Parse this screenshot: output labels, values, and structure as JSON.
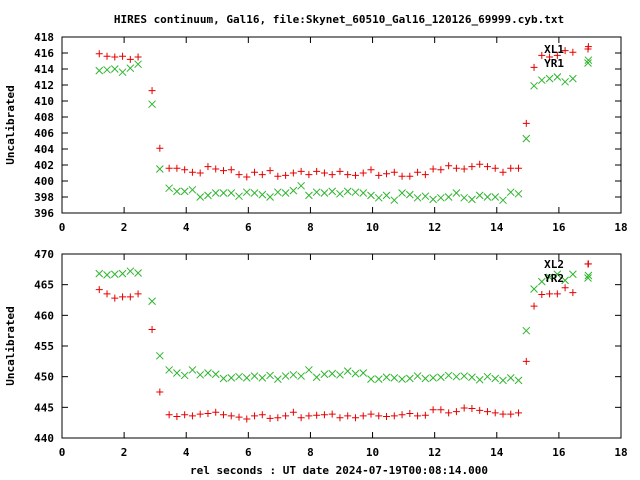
{
  "title": "HIRES continuum, Gal16, file:Skynet_60510_Gal16_120126_69999.cyb.txt",
  "xlabel": "rel seconds : UT date 2024-07-19T00:08:14.000",
  "colors": {
    "red": "#e60000",
    "green": "#2db52d",
    "frame": "#000000"
  },
  "chart_data": [
    {
      "type": "scatter",
      "ylabel": "Uncalibrated",
      "xlim": [
        0,
        18
      ],
      "ylim": [
        396,
        418
      ],
      "xticks": [
        0,
        2,
        4,
        6,
        8,
        10,
        12,
        14,
        16,
        18
      ],
      "yticks": [
        396,
        398,
        400,
        402,
        404,
        406,
        408,
        410,
        412,
        414,
        416,
        418
      ],
      "series": [
        {
          "name": "XL1",
          "color": "#e60000",
          "marker": "plus",
          "x": [
            1.2,
            1.45,
            1.7,
            1.95,
            2.2,
            2.45,
            2.9,
            3.15,
            3.45,
            3.7,
            3.95,
            4.2,
            4.45,
            4.7,
            4.95,
            5.2,
            5.45,
            5.7,
            5.95,
            6.2,
            6.45,
            6.7,
            6.95,
            7.2,
            7.45,
            7.7,
            7.95,
            8.2,
            8.45,
            8.7,
            8.95,
            9.2,
            9.45,
            9.7,
            9.95,
            10.2,
            10.45,
            10.7,
            10.95,
            11.2,
            11.45,
            11.7,
            11.95,
            12.2,
            12.45,
            12.7,
            12.95,
            13.2,
            13.45,
            13.7,
            13.95,
            14.2,
            14.45,
            14.7,
            14.95,
            15.2,
            15.45,
            15.7,
            15.95,
            16.2,
            16.45,
            16.95
          ],
          "y": [
            415.9,
            415.6,
            415.5,
            415.6,
            415.2,
            415.5,
            411.3,
            404.1,
            401.6,
            401.6,
            401.4,
            401.1,
            401.0,
            401.8,
            401.5,
            401.3,
            401.4,
            400.8,
            400.5,
            401.1,
            400.8,
            401.3,
            400.6,
            400.7,
            401.0,
            401.2,
            400.8,
            401.2,
            401.0,
            400.8,
            401.2,
            400.8,
            400.7,
            401.0,
            401.4,
            400.7,
            400.9,
            401.1,
            400.6,
            400.6,
            401.1,
            400.8,
            401.5,
            401.4,
            401.9,
            401.6,
            401.5,
            401.8,
            402.1,
            401.8,
            401.6,
            401.1,
            401.6,
            401.6,
            407.2,
            414.2,
            415.7,
            415.5,
            415.7,
            416.3,
            416.1,
            416.8
          ]
        },
        {
          "name": "YR1",
          "color": "#2db52d",
          "marker": "cross",
          "x": [
            1.2,
            1.45,
            1.7,
            1.95,
            2.2,
            2.45,
            2.9,
            3.15,
            3.45,
            3.7,
            3.95,
            4.2,
            4.45,
            4.7,
            4.95,
            5.2,
            5.45,
            5.7,
            5.95,
            6.2,
            6.45,
            6.7,
            6.95,
            7.2,
            7.45,
            7.7,
            7.95,
            8.2,
            8.45,
            8.7,
            8.95,
            9.2,
            9.45,
            9.7,
            9.95,
            10.2,
            10.45,
            10.7,
            10.95,
            11.2,
            11.45,
            11.7,
            11.95,
            12.2,
            12.45,
            12.7,
            12.95,
            13.2,
            13.45,
            13.7,
            13.95,
            14.2,
            14.45,
            14.7,
            14.95,
            15.2,
            15.45,
            15.7,
            15.95,
            16.2,
            16.45,
            16.95
          ],
          "y": [
            413.8,
            413.9,
            414.0,
            413.6,
            414.1,
            414.6,
            409.6,
            401.5,
            399.1,
            398.7,
            398.7,
            398.9,
            398.0,
            398.2,
            398.5,
            398.5,
            398.5,
            398.1,
            398.6,
            398.5,
            398.3,
            398.0,
            398.6,
            398.5,
            398.8,
            399.4,
            398.2,
            398.6,
            398.5,
            398.7,
            398.4,
            398.7,
            398.6,
            398.5,
            398.2,
            397.9,
            398.2,
            397.6,
            398.5,
            398.3,
            397.9,
            398.1,
            397.7,
            397.9,
            398.0,
            398.5,
            397.9,
            397.7,
            398.2,
            398.0,
            398.0,
            397.6,
            398.6,
            398.4,
            405.3,
            411.9,
            412.6,
            412.8,
            413.0,
            412.4,
            412.8,
            415.1
          ]
        }
      ]
    },
    {
      "type": "scatter",
      "ylabel": "Uncalibrated",
      "xlim": [
        0,
        18
      ],
      "ylim": [
        440,
        470
      ],
      "xticks": [
        0,
        2,
        4,
        6,
        8,
        10,
        12,
        14,
        16,
        18
      ],
      "yticks": [
        440,
        445,
        450,
        455,
        460,
        465,
        470
      ],
      "series": [
        {
          "name": "XL2",
          "color": "#e60000",
          "marker": "plus",
          "x": [
            1.2,
            1.45,
            1.7,
            1.95,
            2.2,
            2.45,
            2.9,
            3.15,
            3.45,
            3.7,
            3.95,
            4.2,
            4.45,
            4.7,
            4.95,
            5.2,
            5.45,
            5.7,
            5.95,
            6.2,
            6.45,
            6.7,
            6.95,
            7.2,
            7.45,
            7.7,
            7.95,
            8.2,
            8.45,
            8.7,
            8.95,
            9.2,
            9.45,
            9.7,
            9.95,
            10.2,
            10.45,
            10.7,
            10.95,
            11.2,
            11.45,
            11.7,
            11.95,
            12.2,
            12.45,
            12.7,
            12.95,
            13.2,
            13.45,
            13.7,
            13.95,
            14.2,
            14.45,
            14.7,
            14.95,
            15.2,
            15.45,
            15.7,
            15.95,
            16.2,
            16.45,
            16.95
          ],
          "y": [
            464.2,
            463.5,
            462.8,
            463.0,
            463.0,
            463.5,
            457.7,
            447.5,
            443.8,
            443.5,
            443.8,
            443.6,
            443.9,
            444.0,
            444.2,
            443.8,
            443.6,
            443.4,
            443.1,
            443.6,
            443.8,
            443.2,
            443.3,
            443.6,
            444.2,
            443.3,
            443.6,
            443.7,
            443.8,
            443.9,
            443.3,
            443.6,
            443.3,
            443.6,
            443.9,
            443.6,
            443.5,
            443.6,
            443.8,
            444.0,
            443.6,
            443.7,
            444.6,
            444.6,
            444.1,
            444.3,
            444.9,
            444.8,
            444.5,
            444.3,
            444.1,
            443.9,
            443.9,
            444.1,
            452.5,
            461.5,
            463.4,
            463.5,
            463.5,
            464.5,
            463.7,
            468.4
          ]
        },
        {
          "name": "YR2",
          "color": "#2db52d",
          "marker": "cross",
          "x": [
            1.2,
            1.45,
            1.7,
            1.95,
            2.2,
            2.45,
            2.9,
            3.15,
            3.45,
            3.7,
            3.95,
            4.2,
            4.45,
            4.7,
            4.95,
            5.2,
            5.45,
            5.7,
            5.95,
            6.2,
            6.45,
            6.7,
            6.95,
            7.2,
            7.45,
            7.7,
            7.95,
            8.2,
            8.45,
            8.7,
            8.95,
            9.2,
            9.45,
            9.7,
            9.95,
            10.2,
            10.45,
            10.7,
            10.95,
            11.2,
            11.45,
            11.7,
            11.95,
            12.2,
            12.45,
            12.7,
            12.95,
            13.2,
            13.45,
            13.7,
            13.95,
            14.2,
            14.45,
            14.7,
            14.95,
            15.2,
            15.45,
            15.7,
            15.95,
            16.2,
            16.45,
            16.95
          ],
          "y": [
            466.8,
            466.6,
            466.7,
            466.8,
            467.2,
            466.9,
            462.3,
            453.4,
            451.1,
            450.6,
            450.2,
            451.1,
            450.3,
            450.6,
            450.4,
            449.7,
            449.8,
            450.0,
            449.8,
            450.1,
            449.8,
            450.2,
            449.6,
            450.1,
            450.3,
            450.1,
            451.1,
            449.9,
            450.4,
            450.5,
            450.3,
            450.9,
            450.5,
            450.6,
            449.6,
            449.6,
            449.9,
            449.8,
            449.6,
            449.7,
            450.1,
            449.7,
            449.8,
            449.9,
            450.2,
            450.0,
            450.1,
            449.9,
            449.5,
            450.0,
            449.7,
            449.4,
            449.8,
            449.4,
            457.5,
            464.3,
            465.5,
            466.2,
            466.7,
            465.7,
            466.7,
            466.5
          ]
        }
      ]
    }
  ]
}
